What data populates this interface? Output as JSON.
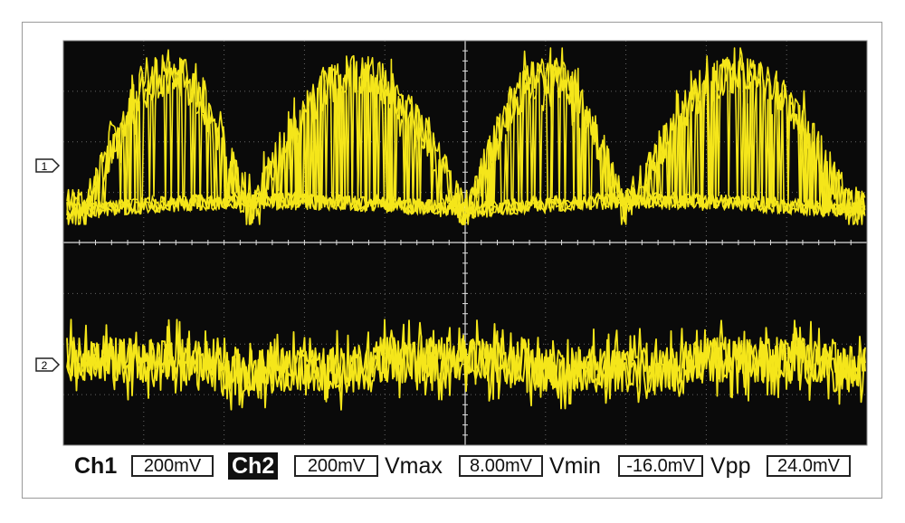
{
  "markers": [
    "1",
    "2"
  ],
  "readout": {
    "ch1": {
      "label": "Ch1",
      "scale": "200mV"
    },
    "ch2": {
      "label": "Ch2",
      "scale": "200mV"
    },
    "vmax": {
      "label": "Vmax",
      "value": "8.00mV"
    },
    "vmin": {
      "label": "Vmin",
      "value": "-16.0mV"
    },
    "vpp": {
      "label": "Vpp",
      "value": "24.0mV"
    }
  }
}
